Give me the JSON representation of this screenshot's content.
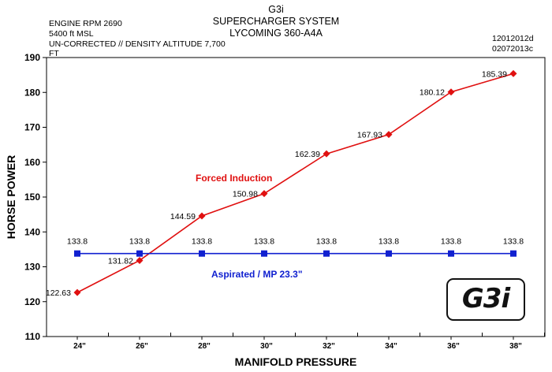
{
  "header": {
    "left_lines": [
      "ENGINE RPM 2690",
      "5400 ft MSL",
      "UN-CORRECTED // DENSITY ALTITUDE 7,700",
      "FT"
    ],
    "center_lines": [
      "G3i",
      "SUPERCHARGER SYSTEM",
      "LYCOMING 360-A4A"
    ],
    "right_lines": [
      "12012012d",
      "02072013c"
    ]
  },
  "logo": {
    "text": "G3i"
  },
  "chart_data": {
    "type": "line",
    "title": "",
    "xlabel": "MANIFOLD PRESSURE",
    "ylabel": "HORSE POWER",
    "categories": [
      "24\"",
      "26\"",
      "28\"",
      "30\"",
      "32\"",
      "34\"",
      "36\"",
      "38\""
    ],
    "ylim": [
      110,
      190
    ],
    "yticks": [
      110,
      120,
      130,
      140,
      150,
      160,
      170,
      180,
      190
    ],
    "grid": false,
    "series": [
      {
        "name": "Forced Induction",
        "color": "#e01010",
        "marker": "diamond",
        "values": [
          122.63,
          131.82,
          144.59,
          150.98,
          162.39,
          167.93,
          180.12,
          185.39
        ]
      },
      {
        "name": "Aspirated / MP 23.3\"",
        "color": "#1020d0",
        "marker": "square",
        "values": [
          133.8,
          133.8,
          133.8,
          133.8,
          133.8,
          133.8,
          133.8,
          133.8
        ]
      }
    ]
  }
}
